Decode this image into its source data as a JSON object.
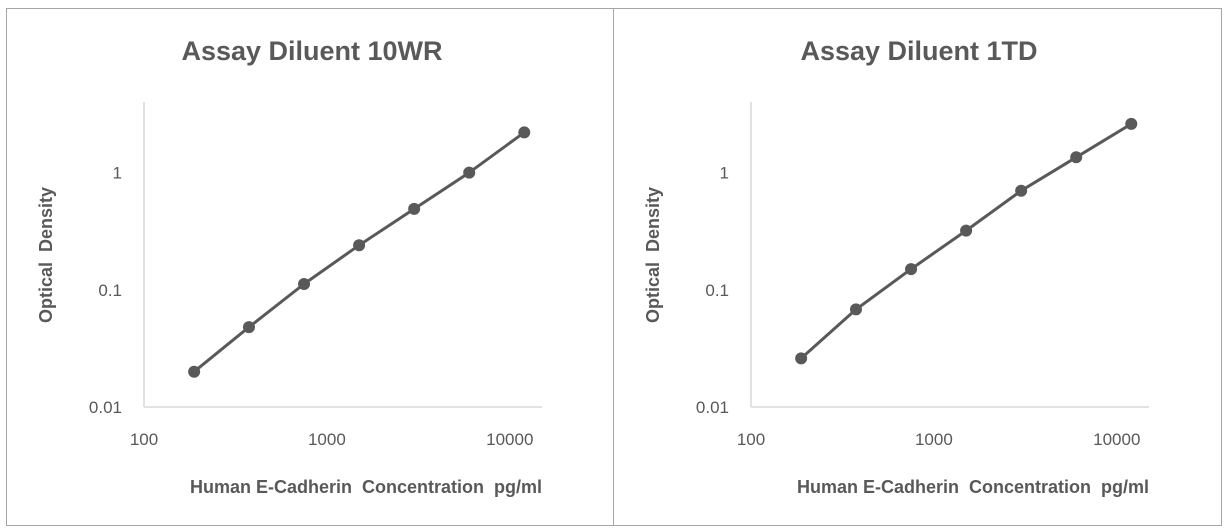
{
  "chart_data": [
    {
      "type": "line",
      "title": "Assay Diluent 10WR",
      "xlabel": "Human E-Cadherin  Concentration  pg/ml",
      "ylabel": "Optical  Density",
      "xscale": "log",
      "yscale": "log",
      "xlim": [
        100,
        15000
      ],
      "ylim": [
        0.01,
        4
      ],
      "xticks": [
        {
          "value": 100,
          "label": "100"
        },
        {
          "value": 1000,
          "label": "1000"
        },
        {
          "value": 10000,
          "label": "10000"
        }
      ],
      "yticks": [
        {
          "value": 0.01,
          "label": "0.01"
        },
        {
          "value": 0.1,
          "label": "0.1"
        },
        {
          "value": 1,
          "label": "1"
        }
      ],
      "series": [
        {
          "name": "Assay Diluent 10WR",
          "color": "#595959",
          "x": [
            188,
            375,
            750,
            1500,
            3000,
            6000,
            12000
          ],
          "y": [
            0.02,
            0.048,
            0.112,
            0.24,
            0.49,
            1.0,
            2.2
          ]
        }
      ]
    },
    {
      "type": "line",
      "title": "Assay Diluent 1TD",
      "xlabel": "Human E-Cadherin  Concentration  pg/ml",
      "ylabel": "Optical  Density",
      "xscale": "log",
      "yscale": "log",
      "xlim": [
        100,
        15000
      ],
      "ylim": [
        0.01,
        4
      ],
      "xticks": [
        {
          "value": 100,
          "label": "100"
        },
        {
          "value": 1000,
          "label": "1000"
        },
        {
          "value": 10000,
          "label": "10000"
        }
      ],
      "yticks": [
        {
          "value": 0.01,
          "label": "0.01"
        },
        {
          "value": 0.1,
          "label": "0.1"
        },
        {
          "value": 1,
          "label": "1"
        }
      ],
      "series": [
        {
          "name": "Assay Diluent 1TD",
          "color": "#595959",
          "x": [
            188,
            375,
            750,
            1500,
            3000,
            6000,
            12000
          ],
          "y": [
            0.026,
            0.068,
            0.15,
            0.32,
            0.7,
            1.35,
            2.6
          ]
        }
      ]
    }
  ]
}
